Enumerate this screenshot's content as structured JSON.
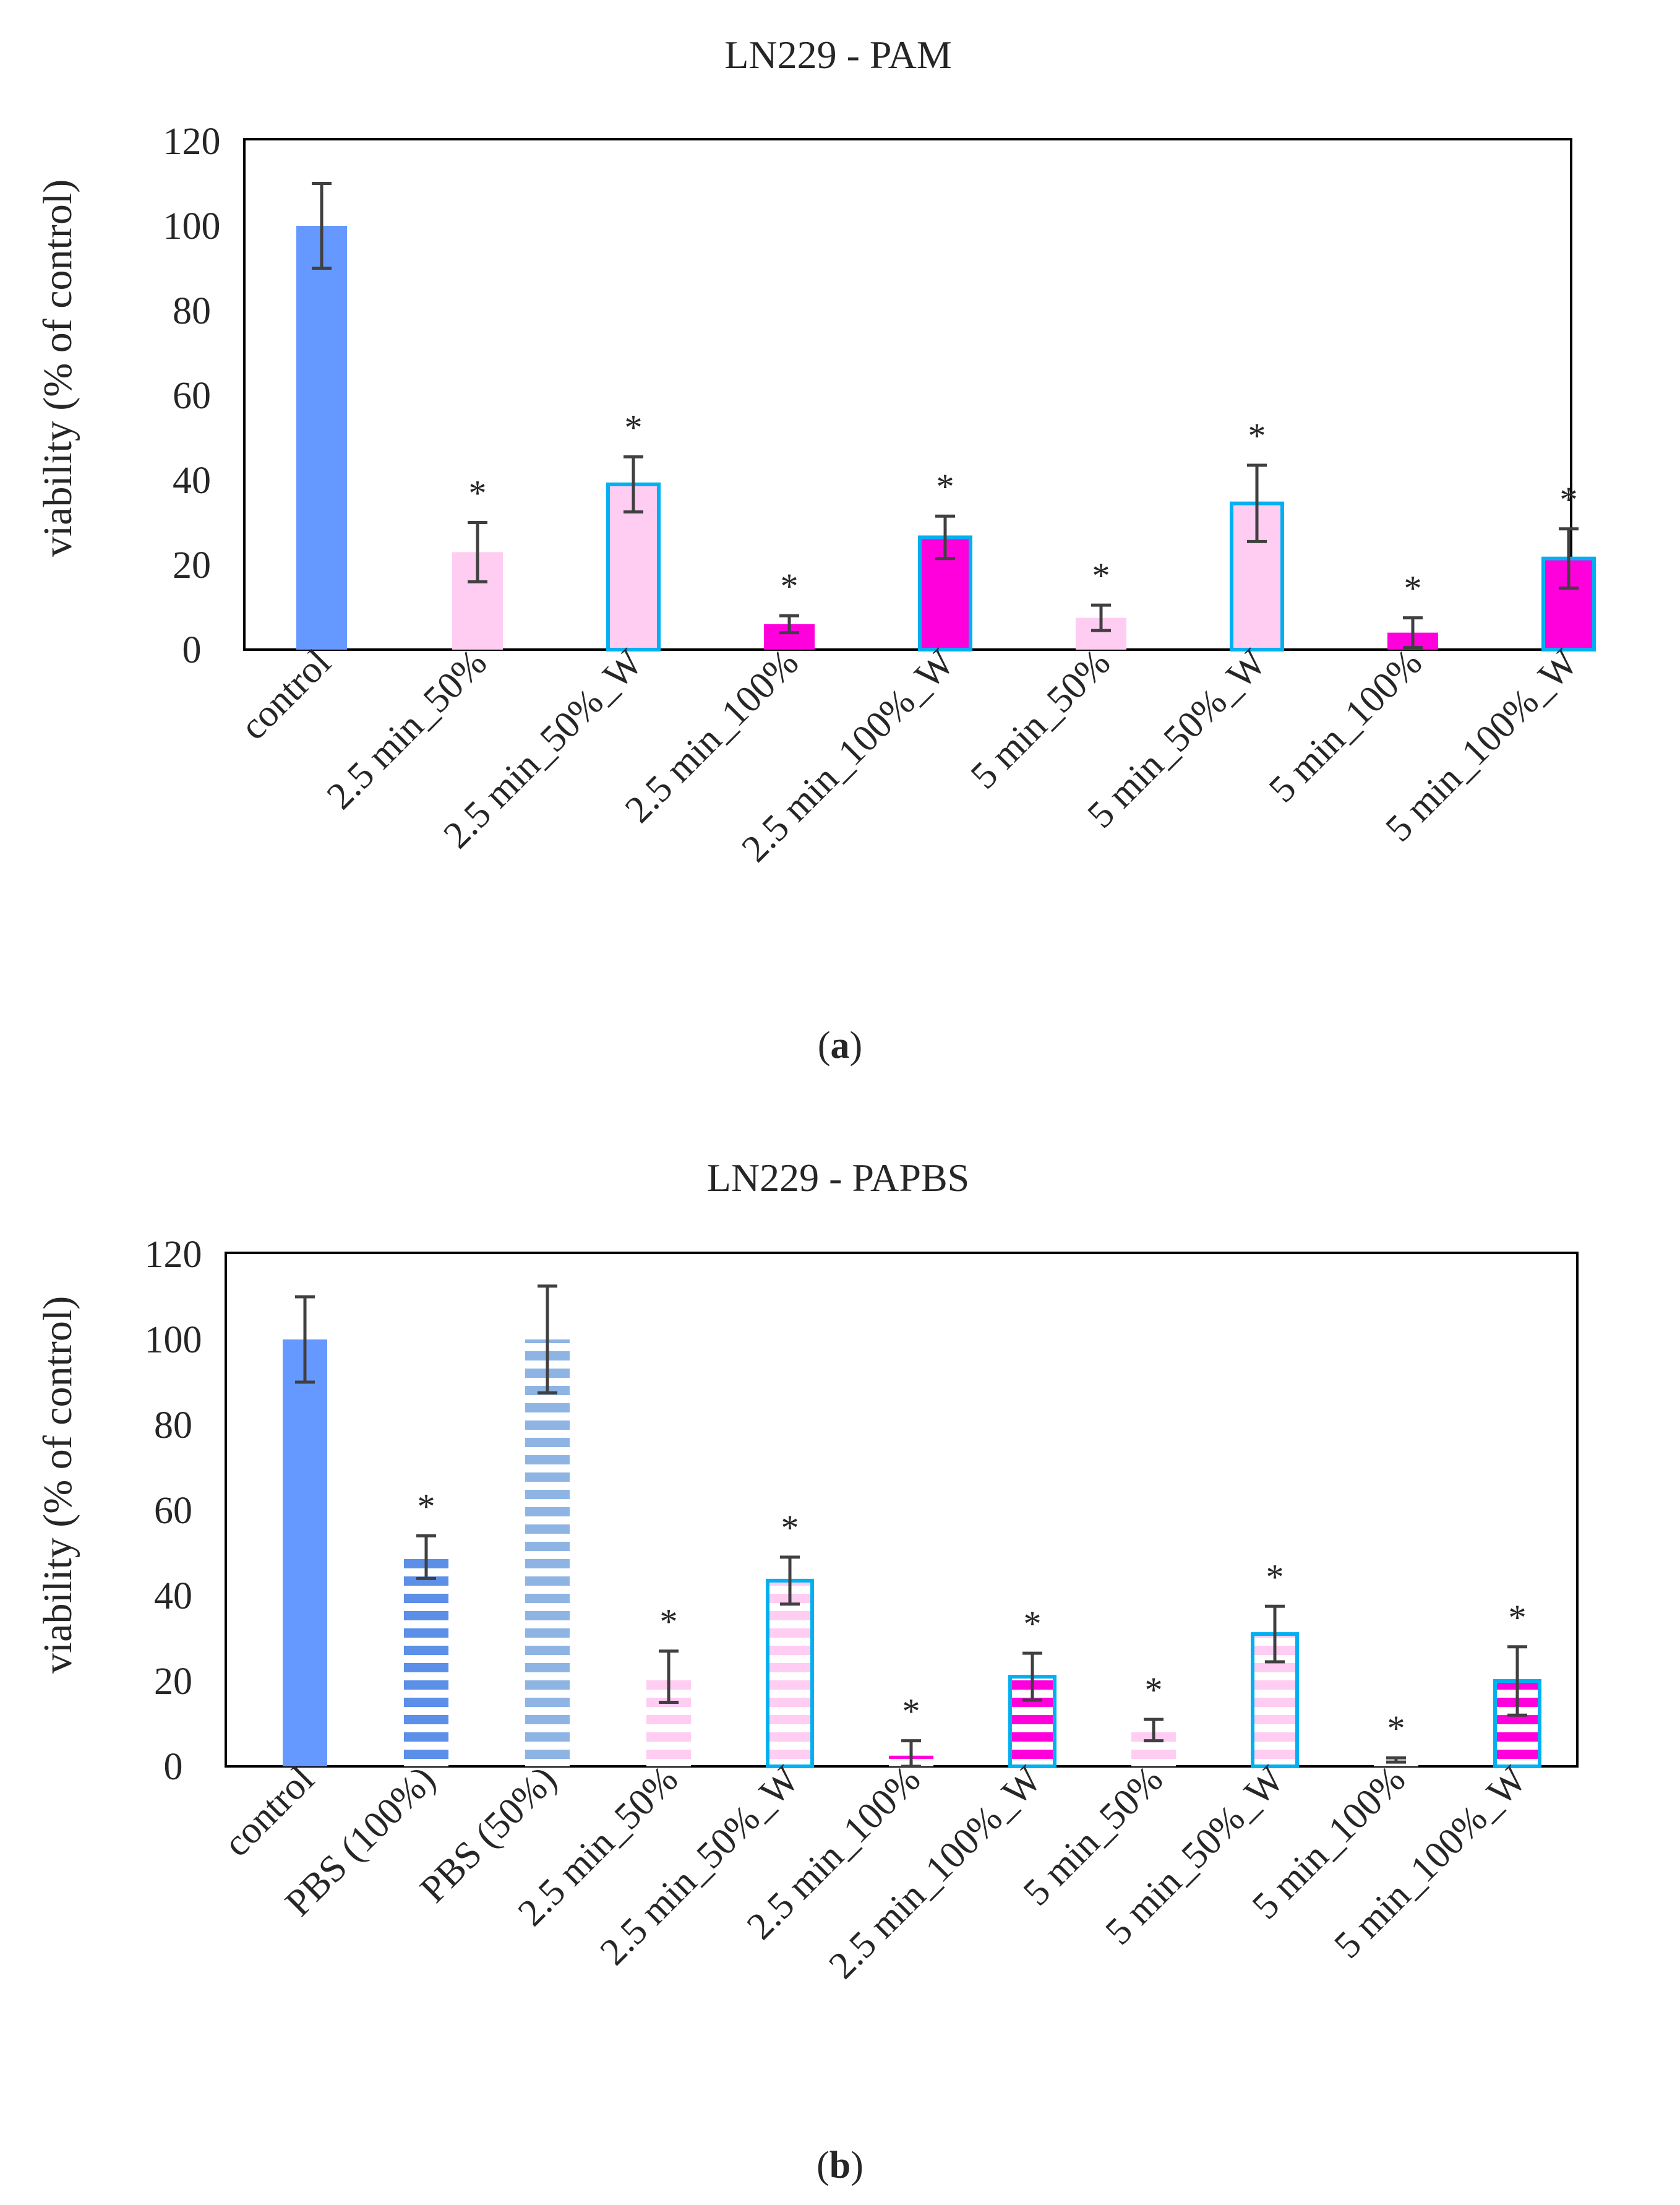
{
  "figure": {
    "panels": [
      {
        "label_open": "(",
        "label_letter": "a",
        "label_close": ")"
      },
      {
        "label_open": "(",
        "label_letter": "b",
        "label_close": ")"
      }
    ]
  },
  "colors": {
    "control": "#6699FF",
    "light_pink": "#FFCCF2",
    "magenta": "#FF00DD",
    "cyan_border": "#00B0F0",
    "pbs100": "#5B8FE8",
    "pbs50": "#8EB4E3",
    "errorbar": "#404040",
    "axis": "#000000"
  },
  "chart_data": [
    {
      "type": "bar",
      "title": "LN229 - PAM",
      "ylabel": "viability (% of control)",
      "xlabel": "",
      "ylim": [
        0,
        120
      ],
      "yticks": [
        0,
        20,
        40,
        60,
        80,
        100,
        120
      ],
      "categories": [
        "control",
        "2.5 min_50%",
        "2.5 min_50%_W",
        "2.5 min_100%",
        "2.5 min_100%_W",
        "5 min_50%",
        "5 min_50%_W",
        "5 min_100%",
        "5 min_100%_W"
      ],
      "values": [
        100,
        23,
        39,
        6,
        26.5,
        7.5,
        34.5,
        4,
        21.5
      ],
      "errors": [
        10,
        7,
        6.5,
        2,
        5,
        3,
        9,
        3.5,
        7
      ],
      "significant": [
        false,
        true,
        true,
        true,
        true,
        true,
        true,
        true,
        true
      ],
      "marker": "*",
      "fills": [
        "control",
        "light_pink",
        "light_pink",
        "magenta",
        "magenta",
        "light_pink",
        "light_pink",
        "magenta",
        "magenta"
      ],
      "bordered": [
        false,
        false,
        true,
        false,
        true,
        false,
        true,
        false,
        true
      ],
      "striped": [
        false,
        false,
        false,
        false,
        false,
        false,
        false,
        false,
        false
      ]
    },
    {
      "type": "bar",
      "title": "LN229 - PAPBS",
      "ylabel": "viability (% of control)",
      "xlabel": "",
      "ylim": [
        0,
        120
      ],
      "yticks": [
        0,
        20,
        40,
        60,
        80,
        100,
        120
      ],
      "categories": [
        "control",
        "PBS (100%)",
        "PBS (50%)",
        "2.5 min_50%",
        "2.5 min_50%_W",
        "2.5 min_100%",
        "2.5 min_100%_W",
        "5 min_50%",
        "5 min_50%_W",
        "5 min_100%",
        "5 min_100%_W"
      ],
      "values": [
        100,
        49,
        100,
        21,
        43.5,
        2.5,
        21,
        8.5,
        31,
        1.5,
        20
      ],
      "errors": [
        10,
        5,
        12.5,
        6,
        5.5,
        3.5,
        5.5,
        2.5,
        6.5,
        0.5,
        8
      ],
      "significant": [
        false,
        true,
        false,
        true,
        true,
        true,
        true,
        true,
        true,
        true,
        true
      ],
      "marker": "*",
      "fills": [
        "control",
        "pbs100",
        "pbs50",
        "light_pink",
        "light_pink",
        "magenta",
        "magenta",
        "light_pink",
        "light_pink",
        "magenta",
        "magenta"
      ],
      "bordered": [
        false,
        false,
        false,
        false,
        true,
        false,
        true,
        false,
        true,
        false,
        true
      ],
      "striped": [
        false,
        true,
        true,
        true,
        true,
        true,
        true,
        true,
        true,
        true,
        true
      ]
    }
  ]
}
